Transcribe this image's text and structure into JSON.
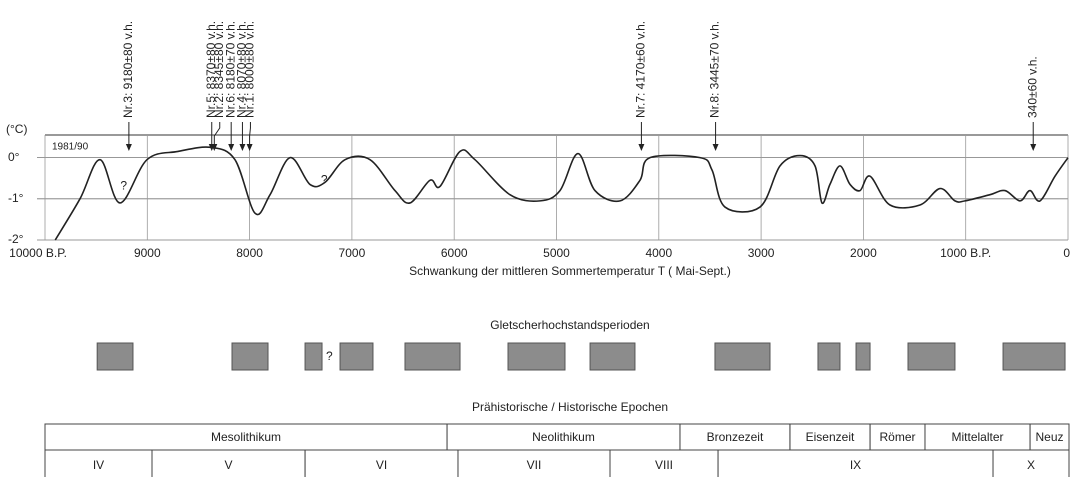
{
  "chart_data": {
    "type": "line",
    "y_label": "(°C)",
    "x_label": "Schwankung der mittleren Sommertemperatur  T ( Mai-Sept.)",
    "reference_label": "1981/90",
    "color": "#222222",
    "xlim": [
      10000,
      0
    ],
    "ylim": [
      -2,
      0.55
    ],
    "xticks": [
      {
        "value": 10000,
        "label": "10000 B.P."
      },
      9000,
      8000,
      7000,
      6000,
      5000,
      4000,
      3000,
      2000,
      {
        "value": 1000,
        "label": "1000 B.P."
      },
      0
    ],
    "yticks": [
      {
        "value": 0,
        "label": "0°"
      },
      {
        "value": -1,
        "label": "-1°"
      },
      {
        "value": -2,
        "label": "-2°"
      }
    ],
    "grid": true,
    "x": [
      9900,
      9658,
      9462,
      9267,
      9003,
      8700,
      8380,
      8143,
      7947,
      7800,
      7605,
      7410,
      7263,
      7067,
      6823,
      6579,
      6432,
      6237,
      6139,
      5944,
      5797,
      5455,
      5161,
      4966,
      4790,
      4624,
      4379,
      4184,
      4086,
      3597,
      3480,
      3353,
      3011,
      2815,
      2620,
      2473,
      2405,
      2327,
      2229,
      2131,
      2033,
      1935,
      1740,
      1447,
      1251,
      1105,
      1007,
      763,
      616,
      469,
      372,
      274,
      127,
      0
    ],
    "values": [
      -2,
      -1,
      -0.05,
      -1.1,
      -0.05,
      0.15,
      0.25,
      -0.05,
      -1.35,
      -0.9,
      0,
      -0.65,
      -0.6,
      -0.05,
      -0.05,
      -0.8,
      -1.1,
      -0.55,
      -0.7,
      0.15,
      -0.05,
      -0.9,
      -1.05,
      -0.8,
      0.1,
      -0.8,
      -1.05,
      -0.55,
      0,
      0,
      -0.3,
      -1.2,
      -1.2,
      -0.2,
      0.05,
      -0.2,
      -1.1,
      -0.65,
      -0.2,
      -0.65,
      -0.8,
      -0.45,
      -1.15,
      -1.15,
      -0.75,
      -1.05,
      -1.05,
      -0.9,
      -0.8,
      -1.05,
      -0.8,
      -1.05,
      -0.45,
      0
    ],
    "question_marks": [
      {
        "text": "?",
        "x": 9230,
        "y": -0.7
      },
      {
        "text": "?",
        "x": 7270,
        "y": -0.55
      }
    ],
    "annotations": [
      {
        "text": "Nr.3:  9180±80 v.h.",
        "x": 9180
      },
      {
        "text": "Nr.5:  8370±80 v.h.",
        "x": 8370
      },
      {
        "text": "Nr.2:  8345±80 v.h.",
        "x": 8345
      },
      {
        "text": "Nr.6:  8180±70 v.h.",
        "x": 8180
      },
      {
        "text": "Nr.4:  8070±80 v.h.",
        "x": 8070
      },
      {
        "text": "Nr.1:  8000±80 v.h.",
        "x": 8000
      },
      {
        "text": "Nr.7:  4170±60 v.h.",
        "x": 4170
      },
      {
        "text": "Nr.8:  3445±70 v.h.",
        "x": 3445
      },
      {
        "text": "340±60 v.h.",
        "x": 340
      }
    ],
    "glacier": {
      "title": "Gletscherhochstandsperioden",
      "question": {
        "text": "?",
        "x": 7220
      },
      "periods": [
        {
          "start": 9490,
          "end": 9140
        },
        {
          "start": 8172,
          "end": 7820
        },
        {
          "start": 7458,
          "end": 7292
        },
        {
          "start": 7116,
          "end": 6794
        },
        {
          "start": 6481,
          "end": 5943
        },
        {
          "start": 5474,
          "end": 4917
        },
        {
          "start": 4672,
          "end": 4233
        },
        {
          "start": 3451,
          "end": 2913
        },
        {
          "start": 2444,
          "end": 2229
        },
        {
          "start": 2072,
          "end": 1935
        },
        {
          "start": 1564,
          "end": 1105
        },
        {
          "start": 635,
          "end": 29
        }
      ]
    },
    "epochs": {
      "title": "Prähistorische / Historische Epochen",
      "cultures": {
        "labels": [
          "Mesolithikum",
          "Neolithikum",
          "Bronzezeit",
          "Eisenzeit",
          "Römer",
          "Mittelalter",
          "Neuz"
        ],
        "bounds": [
          10000,
          6070,
          3793,
          2718,
          1935,
          1398,
          371,
          0
        ]
      },
      "phases": {
        "labels": [
          "IV",
          "V",
          "VI",
          "VII",
          "VIII",
          "IX",
          "X"
        ],
        "bounds": [
          10000,
          8954,
          7458,
          5963,
          4477,
          3421,
          733,
          0
        ]
      }
    }
  }
}
